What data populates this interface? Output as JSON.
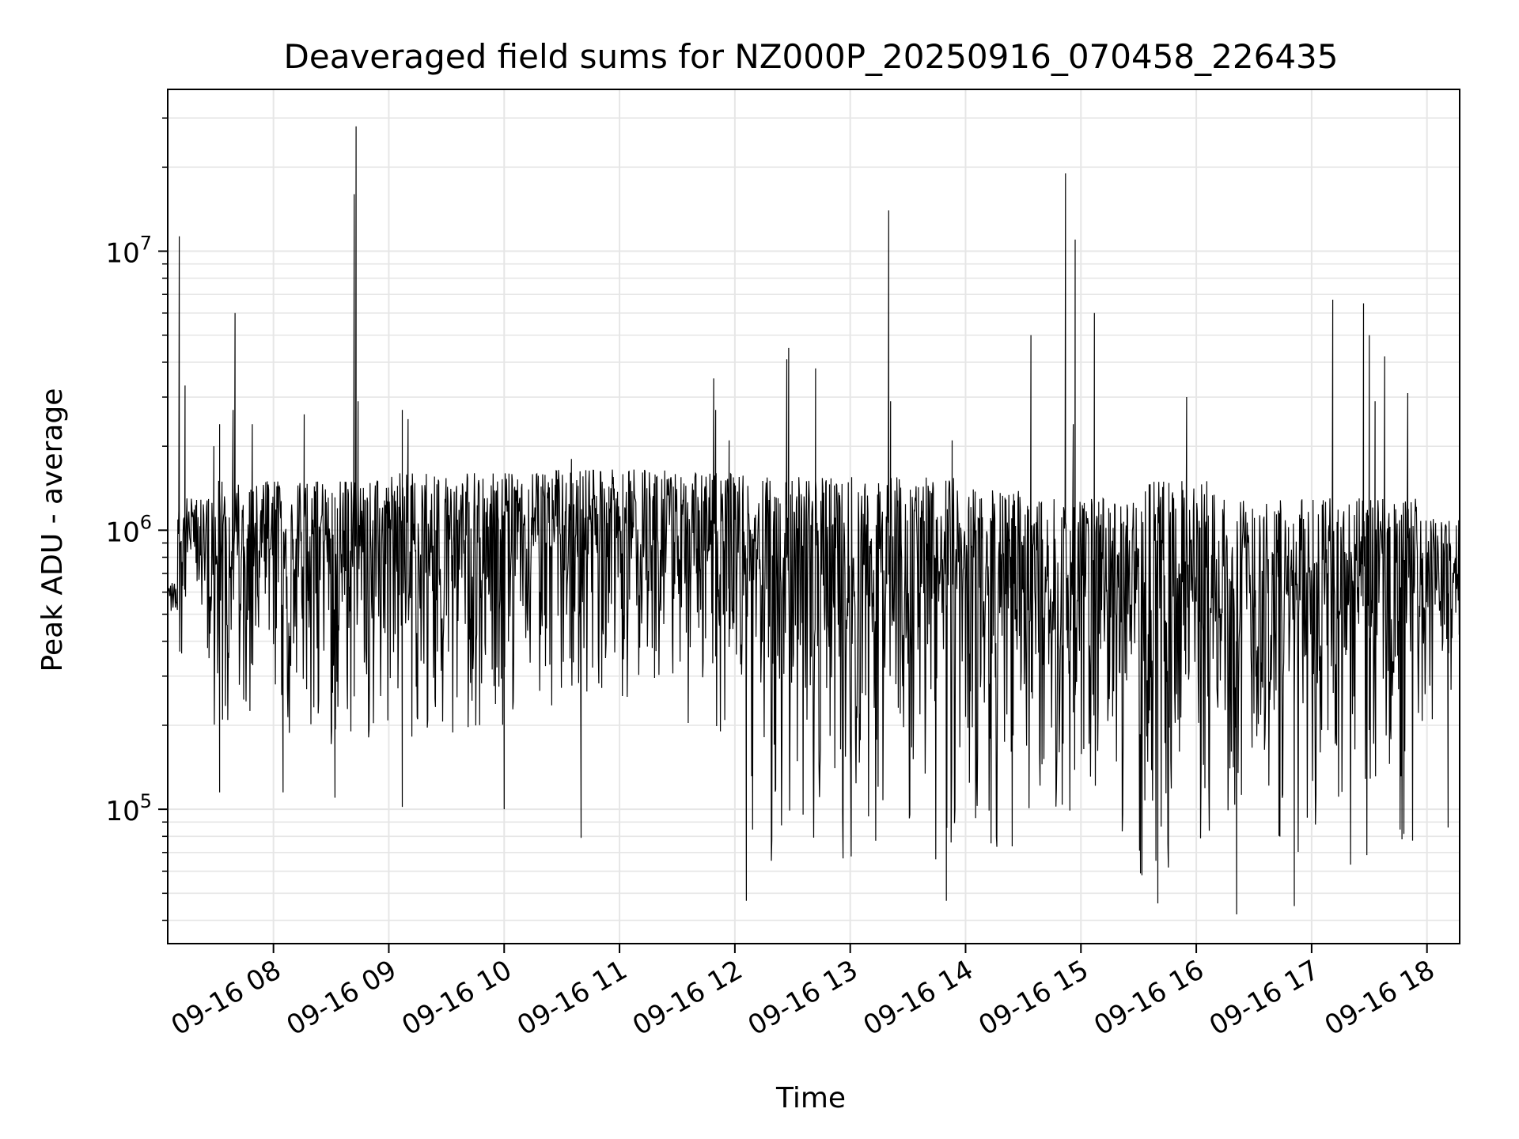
{
  "chart_data": {
    "type": "line",
    "title": "Deaveraged field sums for NZ000P_20250916_070458_226435",
    "xlabel": "Time",
    "ylabel": "Peak ADU - average",
    "yscale": "log",
    "xlim": [
      "2025-09-16T07:05",
      "2025-09-16T18:17"
    ],
    "ylim": [
      33000,
      38000000
    ],
    "grid": true,
    "line_color": "#000000",
    "x_ticks": [
      {
        "value": "2025-09-16T08:00",
        "label": "09-16 08"
      },
      {
        "value": "2025-09-16T09:00",
        "label": "09-16 09"
      },
      {
        "value": "2025-09-16T10:00",
        "label": "09-16 10"
      },
      {
        "value": "2025-09-16T11:00",
        "label": "09-16 11"
      },
      {
        "value": "2025-09-16T12:00",
        "label": "09-16 12"
      },
      {
        "value": "2025-09-16T13:00",
        "label": "09-16 13"
      },
      {
        "value": "2025-09-16T14:00",
        "label": "09-16 14"
      },
      {
        "value": "2025-09-16T15:00",
        "label": "09-16 15"
      },
      {
        "value": "2025-09-16T16:00",
        "label": "09-16 16"
      },
      {
        "value": "2025-09-16T17:00",
        "label": "09-16 17"
      },
      {
        "value": "2025-09-16T18:00",
        "label": "09-16 18"
      }
    ],
    "y_ticks": [
      {
        "value": 100000,
        "base": "10",
        "exp": "5"
      },
      {
        "value": 1000000,
        "base": "10",
        "exp": "6"
      },
      {
        "value": 10000000,
        "base": "10",
        "exp": "7"
      }
    ],
    "bands": [
      {
        "start": "2025-09-16T07:05",
        "end": "2025-09-16T07:10",
        "low": 420000,
        "high": 650000
      },
      {
        "start": "2025-09-16T07:10",
        "end": "2025-09-16T07:25",
        "low": 350000,
        "high": 1300000
      },
      {
        "start": "2025-09-16T07:25",
        "end": "2025-09-16T08:55",
        "low": 170000,
        "high": 1500000
      },
      {
        "start": "2025-09-16T08:55",
        "end": "2025-09-16T10:25",
        "low": 180000,
        "high": 1600000
      },
      {
        "start": "2025-09-16T10:25",
        "end": "2025-09-16T11:30",
        "low": 250000,
        "high": 1650000
      },
      {
        "start": "2025-09-16T11:30",
        "end": "2025-09-16T12:05",
        "low": 150000,
        "high": 1600000
      },
      {
        "start": "2025-09-16T12:05",
        "end": "2025-09-16T13:55",
        "low": 65000,
        "high": 1550000
      },
      {
        "start": "2025-09-16T13:55",
        "end": "2025-09-16T14:30",
        "low": 70000,
        "high": 1400000
      },
      {
        "start": "2025-09-16T14:30",
        "end": "2025-09-16T15:30",
        "low": 80000,
        "high": 1300000
      },
      {
        "start": "2025-09-16T15:30",
        "end": "2025-09-16T16:10",
        "low": 55000,
        "high": 1500000
      },
      {
        "start": "2025-09-16T16:10",
        "end": "2025-09-16T17:55",
        "low": 60000,
        "high": 1300000
      },
      {
        "start": "2025-09-16T17:55",
        "end": "2025-09-16T18:17",
        "low": 200000,
        "high": 1100000
      }
    ],
    "spikes": [
      {
        "t": "2025-09-16T07:11",
        "value": 11300000
      },
      {
        "t": "2025-09-16T07:14",
        "value": 3300000
      },
      {
        "t": "2025-09-16T07:29",
        "value": 2000000
      },
      {
        "t": "2025-09-16T07:32",
        "value": 2400000
      },
      {
        "t": "2025-09-16T07:39",
        "value": 2700000
      },
      {
        "t": "2025-09-16T07:40",
        "value": 6000000
      },
      {
        "t": "2025-09-16T07:49",
        "value": 2400000
      },
      {
        "t": "2025-09-16T08:16",
        "value": 2600000
      },
      {
        "t": "2025-09-16T08:42",
        "value": 16000000
      },
      {
        "t": "2025-09-16T08:43",
        "value": 28000000
      },
      {
        "t": "2025-09-16T08:44",
        "value": 2900000
      },
      {
        "t": "2025-09-16T09:07",
        "value": 2700000
      },
      {
        "t": "2025-09-16T09:10",
        "value": 2500000
      },
      {
        "t": "2025-09-16T10:35",
        "value": 1800000
      },
      {
        "t": "2025-09-16T11:49",
        "value": 3500000
      },
      {
        "t": "2025-09-16T11:50",
        "value": 2700000
      },
      {
        "t": "2025-09-16T11:57",
        "value": 2100000
      },
      {
        "t": "2025-09-16T12:27",
        "value": 4100000
      },
      {
        "t": "2025-09-16T12:28",
        "value": 4500000
      },
      {
        "t": "2025-09-16T12:42",
        "value": 3800000
      },
      {
        "t": "2025-09-16T13:20",
        "value": 14000000
      },
      {
        "t": "2025-09-16T13:21",
        "value": 2900000
      },
      {
        "t": "2025-09-16T13:53",
        "value": 2100000
      },
      {
        "t": "2025-09-16T14:34",
        "value": 5000000
      },
      {
        "t": "2025-09-16T14:52",
        "value": 19000000
      },
      {
        "t": "2025-09-16T14:56",
        "value": 2400000
      },
      {
        "t": "2025-09-16T14:57",
        "value": 11000000
      },
      {
        "t": "2025-09-16T15:07",
        "value": 6000000
      },
      {
        "t": "2025-09-16T15:55",
        "value": 3000000
      },
      {
        "t": "2025-09-16T17:11",
        "value": 6700000
      },
      {
        "t": "2025-09-16T17:27",
        "value": 6500000
      },
      {
        "t": "2025-09-16T17:30",
        "value": 5000000
      },
      {
        "t": "2025-09-16T17:33",
        "value": 2900000
      },
      {
        "t": "2025-09-16T17:38",
        "value": 4200000
      },
      {
        "t": "2025-09-16T17:50",
        "value": 3100000
      }
    ],
    "dips": [
      {
        "t": "2025-09-16T07:32",
        "value": 115000
      },
      {
        "t": "2025-09-16T08:05",
        "value": 115000
      },
      {
        "t": "2025-09-16T08:32",
        "value": 110000
      },
      {
        "t": "2025-09-16T09:07",
        "value": 102000
      },
      {
        "t": "2025-09-16T10:00",
        "value": 100000
      },
      {
        "t": "2025-09-16T10:40",
        "value": 79000
      },
      {
        "t": "2025-09-16T12:06",
        "value": 47000
      },
      {
        "t": "2025-09-16T13:50",
        "value": 47000
      },
      {
        "t": "2025-09-16T15:40",
        "value": 46000
      },
      {
        "t": "2025-09-16T16:21",
        "value": 42000
      },
      {
        "t": "2025-09-16T16:51",
        "value": 45000
      },
      {
        "t": "2025-09-16T18:11",
        "value": 86000
      }
    ]
  }
}
